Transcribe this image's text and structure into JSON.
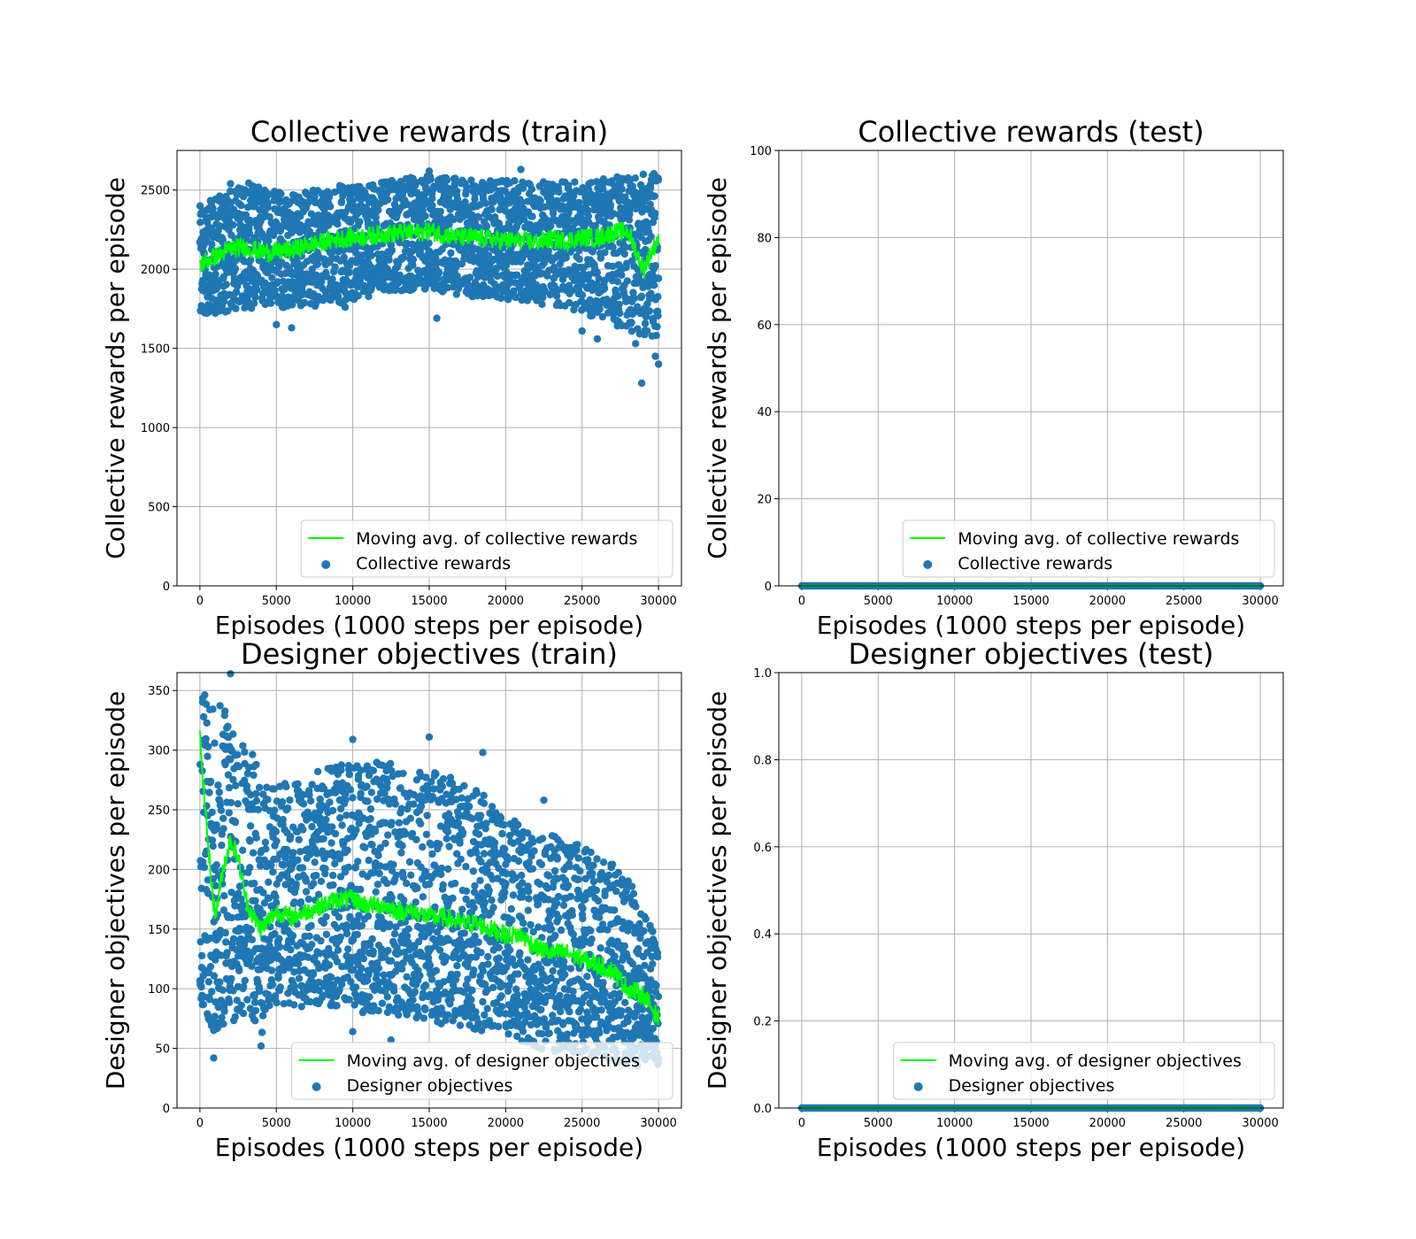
{
  "colors": {
    "scatter": "#1f77b4",
    "moving_avg": "#00ff00",
    "grid": "#b0b0b0"
  },
  "chart_data": [
    {
      "id": "tl",
      "type": "scatter",
      "title": "Collective rewards (train)",
      "xlabel": "Episodes (1000 steps per episode)",
      "ylabel": "Collective rewards per episode",
      "xlim": [
        -1500,
        31500
      ],
      "ylim": [
        0,
        2750
      ],
      "xticks": [
        0,
        5000,
        10000,
        15000,
        20000,
        25000,
        30000
      ],
      "yticks": [
        0,
        500,
        1000,
        1500,
        2000,
        2500
      ],
      "grid": true,
      "legend_position": "lower-right",
      "series": [
        {
          "name": "Moving avg. of collective rewards",
          "kind": "line",
          "x": [
            0,
            1000,
            2000,
            3000,
            4000,
            5000,
            6000,
            7000,
            8000,
            9000,
            10000,
            11000,
            12000,
            13000,
            14000,
            15000,
            16000,
            17000,
            18000,
            19000,
            20000,
            21000,
            22000,
            23000,
            24000,
            25000,
            26000,
            27000,
            28000,
            29000,
            30000
          ],
          "y": [
            2030,
            2080,
            2130,
            2140,
            2110,
            2110,
            2120,
            2150,
            2170,
            2190,
            2200,
            2210,
            2220,
            2230,
            2230,
            2240,
            2220,
            2200,
            2200,
            2190,
            2180,
            2180,
            2170,
            2190,
            2180,
            2200,
            2200,
            2230,
            2240,
            2000,
            2200
          ]
        },
        {
          "name": "Collective rewards",
          "kind": "scatter",
          "x": [
            0,
            3000,
            6000,
            9000,
            12000,
            15000,
            18000,
            21000,
            24000,
            27000,
            30000
          ],
          "y": [
            2050,
            2110,
            2130,
            2180,
            2200,
            2220,
            2190,
            2180,
            2180,
            2200,
            2100
          ],
          "upper": [
            2400,
            2550,
            2480,
            2530,
            2550,
            2600,
            2560,
            2560,
            2550,
            2580,
            2610
          ],
          "lower": [
            1700,
            1750,
            1750,
            1780,
            1850,
            1870,
            1820,
            1800,
            1750,
            1650,
            1550
          ],
          "outliers": [
            [
              2000,
              2540
            ],
            [
              5000,
              1650
            ],
            [
              6000,
              1630
            ],
            [
              9500,
              1760
            ],
            [
              15500,
              1690
            ],
            [
              15000,
              2620
            ],
            [
              21000,
              2630
            ],
            [
              25000,
              1610
            ],
            [
              26000,
              1560
            ],
            [
              28500,
              1530
            ],
            [
              28900,
              1280
            ],
            [
              29800,
              1450
            ],
            [
              30000,
              1400
            ]
          ]
        }
      ]
    },
    {
      "id": "tr",
      "type": "scatter",
      "title": "Collective rewards (test)",
      "xlabel": "Episodes (1000 steps per episode)",
      "ylabel": "Collective rewards per episode",
      "xlim": [
        -1500,
        31500
      ],
      "ylim": [
        0,
        100
      ],
      "xticks": [
        0,
        5000,
        10000,
        15000,
        20000,
        25000,
        30000
      ],
      "yticks": [
        0,
        20,
        40,
        60,
        80,
        100
      ],
      "grid": true,
      "legend_position": "lower-right",
      "series": [
        {
          "name": "Moving avg. of collective rewards",
          "kind": "line",
          "x": [
            0,
            30000
          ],
          "y": [
            0,
            0
          ]
        },
        {
          "name": "Collective rewards",
          "kind": "scatter",
          "x": [
            0,
            30000
          ],
          "y": [
            0,
            0
          ],
          "upper": [
            0,
            0
          ],
          "lower": [
            0,
            0
          ]
        }
      ]
    },
    {
      "id": "bl",
      "type": "scatter",
      "title": "Designer objectives (train)",
      "xlabel": "Episodes (1000 steps per episode)",
      "ylabel": "Designer objectives per episode",
      "xlim": [
        -1500,
        31500
      ],
      "ylim": [
        0,
        365
      ],
      "xticks": [
        0,
        5000,
        10000,
        15000,
        20000,
        25000,
        30000
      ],
      "yticks": [
        0,
        50,
        100,
        150,
        200,
        250,
        300,
        350
      ],
      "grid": true,
      "legend_position": "lower-right",
      "series": [
        {
          "name": "Moving avg. of designer objectives",
          "kind": "line",
          "x": [
            0,
            300,
            600,
            1000,
            1500,
            2000,
            2500,
            3000,
            3500,
            4000,
            5000,
            6000,
            7000,
            8000,
            9000,
            10000,
            11000,
            12000,
            13000,
            14000,
            15000,
            16000,
            17000,
            18000,
            19000,
            20000,
            21000,
            22000,
            23000,
            24000,
            25000,
            26000,
            27000,
            28000,
            29000,
            30000
          ],
          "y": [
            310,
            260,
            210,
            160,
            200,
            225,
            210,
            175,
            160,
            150,
            165,
            160,
            165,
            170,
            175,
            175,
            170,
            170,
            165,
            165,
            160,
            160,
            155,
            155,
            150,
            145,
            145,
            135,
            130,
            130,
            125,
            120,
            115,
            100,
            95,
            75
          ]
        },
        {
          "name": "Designer objectives",
          "kind": "scatter",
          "x": [
            0,
            1000,
            2000,
            3000,
            4000,
            5000,
            6000,
            8000,
            10000,
            12000,
            14000,
            16000,
            18000,
            20000,
            22000,
            24000,
            26000,
            28000,
            30000
          ],
          "y": [
            230,
            170,
            200,
            170,
            150,
            160,
            160,
            170,
            175,
            170,
            165,
            160,
            155,
            145,
            135,
            125,
            120,
            105,
            80
          ],
          "upper": [
            350,
            340,
            335,
            320,
            275,
            270,
            275,
            285,
            290,
            290,
            285,
            280,
            270,
            250,
            240,
            225,
            215,
            195,
            140
          ],
          "lower": [
            90,
            60,
            70,
            80,
            60,
            85,
            85,
            85,
            80,
            80,
            75,
            70,
            65,
            60,
            50,
            45,
            40,
            35,
            35
          ],
          "outliers": [
            [
              2000,
              364
            ],
            [
              10000,
              309
            ],
            [
              15000,
              311
            ],
            [
              18500,
              298
            ],
            [
              22500,
              258
            ],
            [
              900,
              42
            ],
            [
              4000,
              52
            ],
            [
              10000,
              64
            ],
            [
              12500,
              57
            ]
          ]
        }
      ]
    },
    {
      "id": "br",
      "type": "scatter",
      "title": "Designer objectives (test)",
      "xlabel": "Episodes (1000 steps per episode)",
      "ylabel": "Designer objectives per episode",
      "xlim": [
        -1500,
        31500
      ],
      "ylim": [
        0,
        1
      ],
      "xticks": [
        0,
        5000,
        10000,
        15000,
        20000,
        25000,
        30000
      ],
      "yticks": [
        0.0,
        0.2,
        0.4,
        0.6,
        0.8,
        1.0
      ],
      "ytick_labels": [
        "0.0",
        "0.2",
        "0.4",
        "0.6",
        "0.8",
        "1.0"
      ],
      "grid": true,
      "legend_position": "lower-right",
      "series": [
        {
          "name": "Moving avg. of designer objectives",
          "kind": "line",
          "x": [
            0,
            30000
          ],
          "y": [
            0,
            0
          ]
        },
        {
          "name": "Designer objectives",
          "kind": "scatter",
          "x": [
            0,
            30000
          ],
          "y": [
            0,
            0
          ],
          "upper": [
            0,
            0
          ],
          "lower": [
            0,
            0
          ]
        }
      ]
    }
  ]
}
